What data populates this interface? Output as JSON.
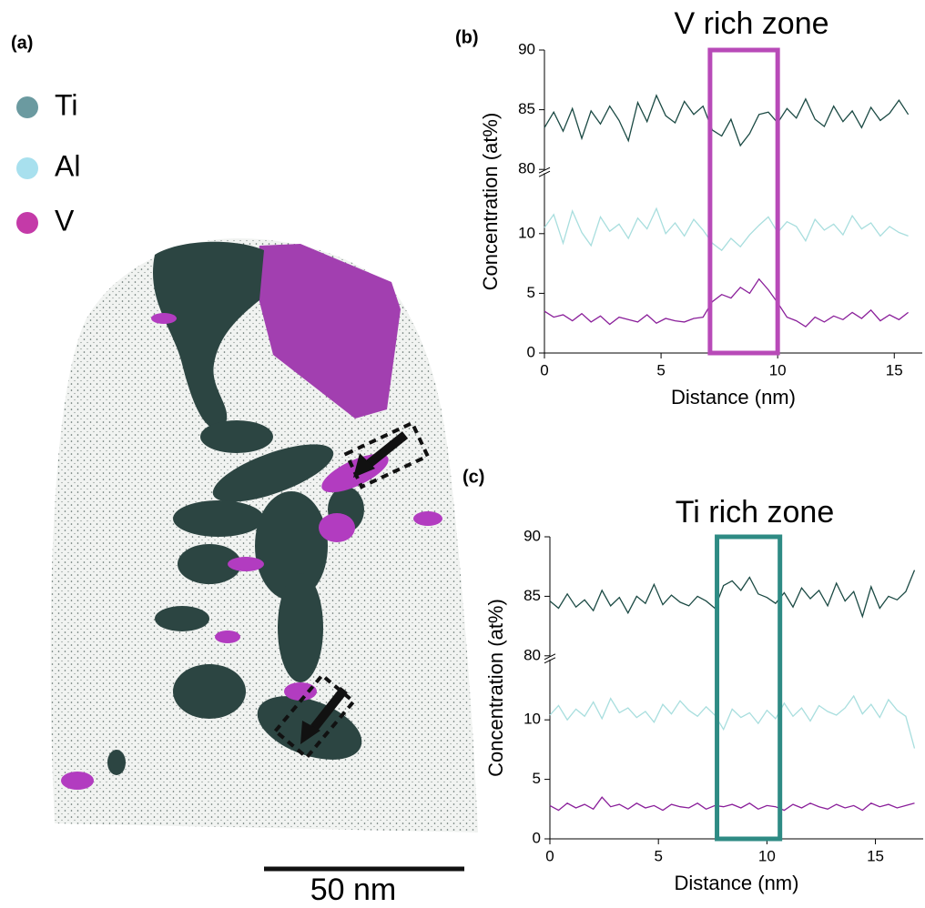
{
  "image": {
    "panel_label": "(a)",
    "legend": [
      {
        "name": "Ti",
        "color": "#6b9aa0"
      },
      {
        "name": "Al",
        "color": "#a8e0ee"
      },
      {
        "name": "V",
        "color": "#c43aa8"
      }
    ],
    "scale_bar": "50 nm"
  },
  "chart_data": [
    {
      "type": "line",
      "panel_label": "(b)",
      "title": "V rich zone",
      "x_label": "Distance (nm)",
      "y_label": "Concentration (at%)",
      "xlim": [
        0,
        16.2
      ],
      "xticks": [
        0,
        5,
        10,
        15
      ],
      "ylim": [
        0,
        90
      ],
      "ybreak": [
        15,
        80
      ],
      "yticks": [
        0,
        5,
        10,
        80,
        85,
        90
      ],
      "highlight": {
        "x": [
          7.1,
          10.0
        ],
        "color": "#b84ab8"
      },
      "x": [
        0,
        0.4,
        0.8,
        1.2,
        1.6,
        2,
        2.4,
        2.8,
        3.2,
        3.6,
        4,
        4.4,
        4.8,
        5.2,
        5.6,
        6,
        6.4,
        6.8,
        7.2,
        7.6,
        8,
        8.4,
        8.8,
        9.2,
        9.6,
        10,
        10.4,
        10.8,
        11.2,
        11.6,
        12,
        12.4,
        12.8,
        13.2,
        13.6,
        14,
        14.4,
        14.8,
        15.2,
        15.6
      ],
      "series": [
        {
          "name": "Ti",
          "color": "#1b4a44",
          "values": [
            83.5,
            84.8,
            83.2,
            85.1,
            82.6,
            84.9,
            83.8,
            85.3,
            84.1,
            82.4,
            85.6,
            84.0,
            86.2,
            84.5,
            83.9,
            85.7,
            84.6,
            85.3,
            83.3,
            82.8,
            84.2,
            82.0,
            83.0,
            84.6,
            84.8,
            83.9,
            85.1,
            84.3,
            85.9,
            84.2,
            83.6,
            85.3,
            84.0,
            84.9,
            83.5,
            85.2,
            84.1,
            84.7,
            85.8,
            84.6
          ]
        },
        {
          "name": "Al",
          "color": "#a8dede",
          "values": [
            10.5,
            11.6,
            9.2,
            11.9,
            10.1,
            9.0,
            11.4,
            10.2,
            10.8,
            9.6,
            11.3,
            10.4,
            12.1,
            10.0,
            10.9,
            9.8,
            11.2,
            10.3,
            9.2,
            8.6,
            9.6,
            8.9,
            9.9,
            10.7,
            11.4,
            10.1,
            11.0,
            10.6,
            9.4,
            11.2,
            10.3,
            10.8,
            9.9,
            11.5,
            10.4,
            10.9,
            9.8,
            10.6,
            10.1,
            9.8
          ]
        },
        {
          "name": "V",
          "color": "#8a1f9a",
          "values": [
            3.5,
            3.0,
            3.2,
            2.7,
            3.3,
            2.6,
            3.1,
            2.4,
            3.0,
            2.8,
            2.6,
            3.2,
            2.5,
            2.9,
            2.7,
            2.6,
            2.9,
            3.0,
            4.3,
            4.9,
            4.6,
            5.5,
            5.0,
            6.2,
            5.3,
            4.2,
            3.0,
            2.7,
            2.2,
            3.0,
            2.6,
            3.1,
            2.8,
            3.4,
            2.9,
            3.6,
            2.7,
            3.2,
            2.8,
            3.4
          ]
        }
      ]
    },
    {
      "type": "line",
      "panel_label": "(c)",
      "title": "Ti rich zone",
      "x_label": "Distance (nm)",
      "y_label": "Concentration (at%)",
      "xlim": [
        0,
        17.2
      ],
      "xticks": [
        0,
        5,
        10,
        15
      ],
      "ylim": [
        0,
        90
      ],
      "ybreak": [
        15,
        80
      ],
      "yticks": [
        0,
        5,
        10,
        80,
        85,
        90
      ],
      "highlight": {
        "x": [
          7.7,
          10.6
        ],
        "color": "#2e8b84"
      },
      "x": [
        0,
        0.4,
        0.8,
        1.2,
        1.6,
        2,
        2.4,
        2.8,
        3.2,
        3.6,
        4,
        4.4,
        4.8,
        5.2,
        5.6,
        6,
        6.4,
        6.8,
        7.2,
        7.6,
        8,
        8.4,
        8.8,
        9.2,
        9.6,
        10,
        10.4,
        10.8,
        11.2,
        11.6,
        12,
        12.4,
        12.8,
        13.2,
        13.6,
        14,
        14.4,
        14.8,
        15.2,
        15.6,
        16,
        16.4,
        16.8
      ],
      "series": [
        {
          "name": "Ti",
          "color": "#1b4a44",
          "values": [
            84.6,
            84.0,
            85.2,
            84.1,
            84.7,
            83.8,
            85.5,
            84.2,
            84.9,
            83.6,
            85.0,
            84.4,
            86.0,
            84.3,
            85.1,
            84.5,
            84.2,
            85.0,
            84.6,
            84.0,
            85.9,
            86.3,
            85.5,
            86.6,
            85.2,
            84.9,
            84.4,
            85.3,
            84.1,
            85.7,
            84.8,
            85.5,
            84.2,
            86.1,
            84.6,
            85.4,
            83.3,
            85.8,
            84.0,
            85.0,
            84.7,
            85.4,
            87.2
          ]
        },
        {
          "name": "Al",
          "color": "#a8dede",
          "values": [
            10.4,
            11.2,
            10.0,
            10.9,
            10.3,
            11.5,
            10.1,
            11.8,
            10.6,
            11.0,
            10.2,
            10.7,
            9.8,
            11.3,
            10.5,
            11.6,
            10.8,
            10.3,
            11.1,
            10.4,
            9.2,
            10.9,
            10.2,
            10.6,
            9.7,
            10.8,
            10.1,
            11.4,
            10.3,
            11.0,
            9.9,
            11.2,
            10.7,
            10.4,
            11.0,
            12.0,
            10.5,
            11.3,
            10.2,
            11.7,
            10.8,
            10.3,
            7.6
          ]
        },
        {
          "name": "V",
          "color": "#8a1f9a",
          "values": [
            2.8,
            2.4,
            3.0,
            2.6,
            2.9,
            2.5,
            3.5,
            2.7,
            2.9,
            2.5,
            3.0,
            2.6,
            2.8,
            2.4,
            2.9,
            2.7,
            2.6,
            3.0,
            2.5,
            2.8,
            2.7,
            2.9,
            2.6,
            3.0,
            2.5,
            2.8,
            2.7,
            2.4,
            2.9,
            2.6,
            3.0,
            2.7,
            2.5,
            2.9,
            2.6,
            2.8,
            2.4,
            3.0,
            2.7,
            2.9,
            2.6,
            2.8,
            3.0
          ]
        }
      ]
    }
  ]
}
